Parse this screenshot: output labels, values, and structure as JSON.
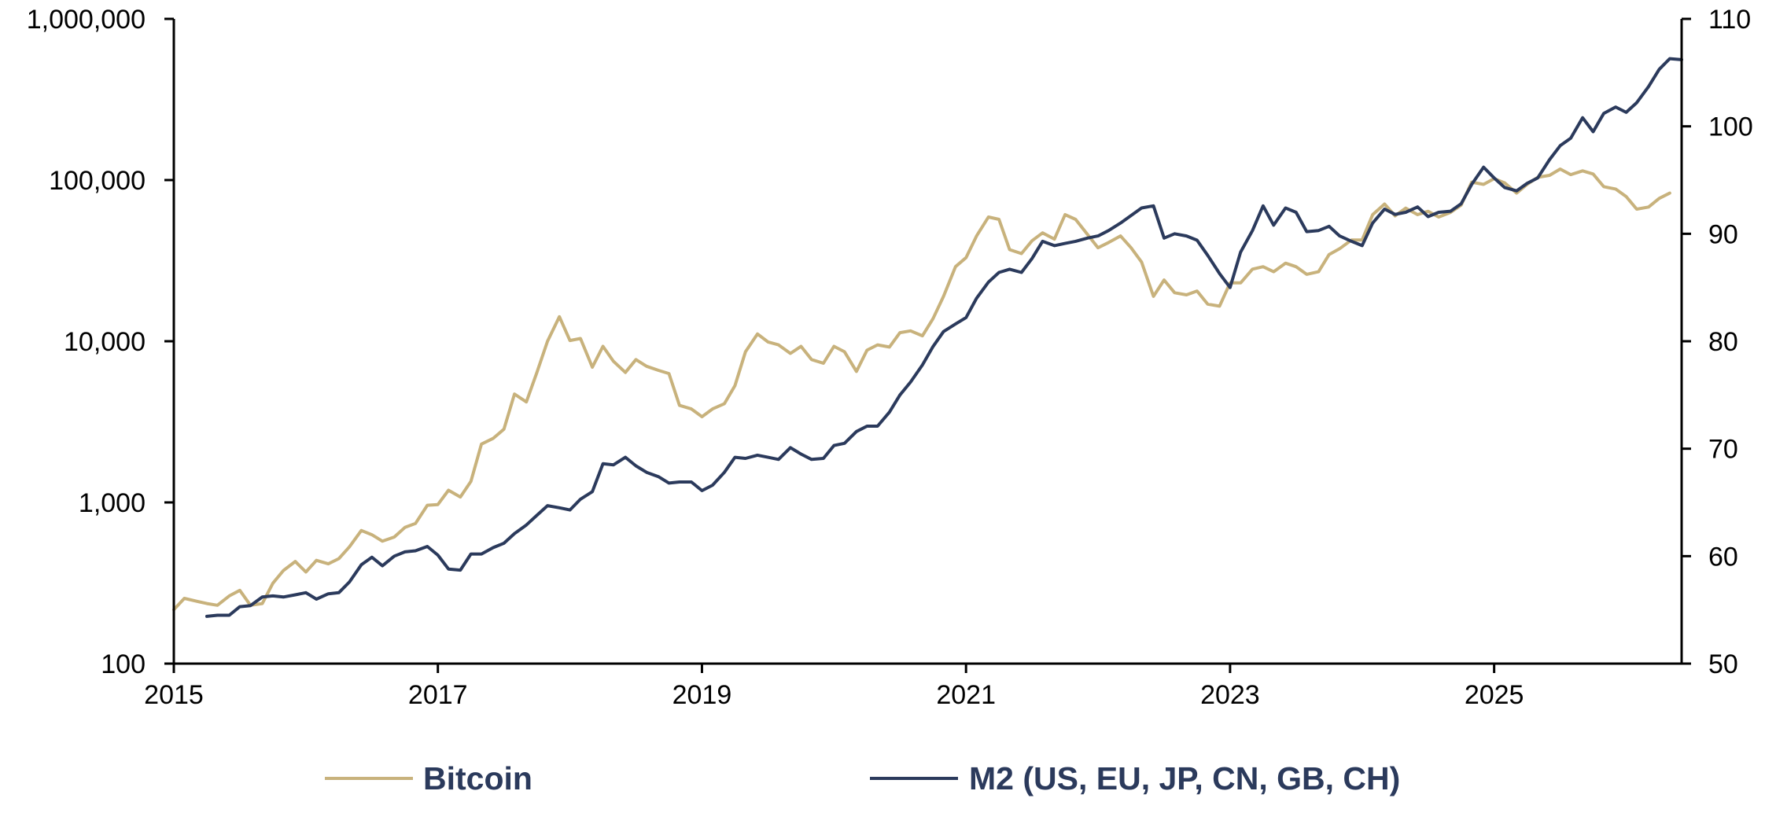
{
  "chart_data": {
    "type": "line",
    "title": "",
    "xlabel": "",
    "ylabel": "",
    "x_ticks": [
      "2015",
      "2017",
      "2019",
      "2021",
      "2023",
      "2025"
    ],
    "x_range": [
      2015.0,
      2026.42
    ],
    "y_left": {
      "scale": "log",
      "range": [
        100,
        1000000
      ],
      "ticks": [
        "100",
        "1,000",
        "10,000",
        "100,000",
        "1,000,000"
      ]
    },
    "y_right": {
      "scale": "linear",
      "range": [
        50,
        110
      ],
      "ticks": [
        "50",
        "60",
        "70",
        "80",
        "90",
        "100",
        "110"
      ]
    },
    "grid": false,
    "legend_position": "bottom",
    "series": [
      {
        "name": "Bitcoin",
        "axis": "left",
        "color": "#c8b27c",
        "x": [
          2015.0,
          2015.08,
          2015.17,
          2015.25,
          2015.33,
          2015.42,
          2015.5,
          2015.58,
          2015.67,
          2015.75,
          2015.83,
          2015.92,
          2016.0,
          2016.08,
          2016.17,
          2016.25,
          2016.33,
          2016.42,
          2016.5,
          2016.58,
          2016.67,
          2016.75,
          2016.83,
          2016.92,
          2017.0,
          2017.08,
          2017.17,
          2017.25,
          2017.33,
          2017.42,
          2017.5,
          2017.58,
          2017.67,
          2017.75,
          2017.83,
          2017.92,
          2018.0,
          2018.08,
          2018.17,
          2018.25,
          2018.33,
          2018.42,
          2018.5,
          2018.58,
          2018.67,
          2018.75,
          2018.83,
          2018.92,
          2019.0,
          2019.08,
          2019.17,
          2019.25,
          2019.33,
          2019.42,
          2019.5,
          2019.58,
          2019.67,
          2019.75,
          2019.83,
          2019.92,
          2020.0,
          2020.08,
          2020.17,
          2020.25,
          2020.33,
          2020.42,
          2020.5,
          2020.58,
          2020.67,
          2020.75,
          2020.83,
          2020.92,
          2021.0,
          2021.08,
          2021.17,
          2021.25,
          2021.33,
          2021.42,
          2021.5,
          2021.58,
          2021.67,
          2021.75,
          2021.83,
          2021.92,
          2022.0,
          2022.08,
          2022.17,
          2022.25,
          2022.33,
          2022.42,
          2022.5,
          2022.58,
          2022.67,
          2022.75,
          2022.83,
          2022.92,
          2023.0,
          2023.08,
          2023.17,
          2023.25,
          2023.33,
          2023.42,
          2023.5,
          2023.58,
          2023.67,
          2023.75,
          2023.83,
          2023.92,
          2024.0,
          2024.08,
          2024.17,
          2024.25,
          2024.33,
          2024.42,
          2024.5,
          2024.58,
          2024.67,
          2024.75,
          2024.83,
          2024.92,
          2025.0,
          2025.08,
          2025.17,
          2025.25,
          2025.33,
          2025.42,
          2025.5,
          2025.58,
          2025.67,
          2025.75,
          2025.83,
          2025.92,
          2026.0,
          2026.08,
          2026.17,
          2026.25,
          2026.33
        ],
        "values": [
          216,
          254,
          244,
          236,
          230,
          263,
          285,
          230,
          236,
          315,
          378,
          430,
          370,
          437,
          416,
          448,
          531,
          670,
          630,
          575,
          610,
          700,
          740,
          960,
          970,
          1190,
          1080,
          1350,
          2300,
          2500,
          2850,
          4700,
          4200,
          6400,
          10000,
          14200,
          10100,
          10400,
          6900,
          9300,
          7500,
          6400,
          7700,
          7000,
          6600,
          6300,
          4000,
          3800,
          3400,
          3800,
          4100,
          5300,
          8600,
          11100,
          9900,
          9500,
          8400,
          9300,
          7700,
          7300,
          9300,
          8600,
          6500,
          8800,
          9500,
          9200,
          11300,
          11600,
          10800,
          13800,
          19000,
          29000,
          33000,
          45000,
          59000,
          57000,
          37000,
          35000,
          42000,
          47000,
          43000,
          61000,
          57000,
          46000,
          38000,
          41000,
          45000,
          38000,
          31000,
          19000,
          24000,
          20000,
          19400,
          20500,
          17000,
          16500,
          23000,
          23000,
          28000,
          29000,
          27000,
          30500,
          29000,
          26000,
          27000,
          34500,
          37500,
          42500,
          42500,
          61000,
          71000,
          60000,
          67000,
          61000,
          64000,
          59000,
          63000,
          70000,
          97000,
          94000,
          102000,
          96000,
          83000,
          94000,
          104000,
          107000,
          117000,
          108000,
          114000,
          109000,
          91000,
          88000,
          79000,
          66000,
          68000,
          77000,
          83000
        ]
      },
      {
        "name": "M2 (US, EU, JP, CN, GB, CH)",
        "axis": "right",
        "color": "#2b3a5c",
        "x": [
          2015.25,
          2015.33,
          2015.42,
          2015.5,
          2015.58,
          2015.67,
          2015.75,
          2015.83,
          2015.92,
          2016.0,
          2016.08,
          2016.17,
          2016.25,
          2016.33,
          2016.42,
          2016.5,
          2016.58,
          2016.67,
          2016.75,
          2016.83,
          2016.92,
          2017.0,
          2017.08,
          2017.17,
          2017.25,
          2017.33,
          2017.42,
          2017.5,
          2017.58,
          2017.67,
          2017.75,
          2017.83,
          2017.92,
          2018.0,
          2018.08,
          2018.17,
          2018.25,
          2018.33,
          2018.42,
          2018.5,
          2018.58,
          2018.67,
          2018.75,
          2018.83,
          2018.92,
          2019.0,
          2019.08,
          2019.17,
          2019.25,
          2019.33,
          2019.42,
          2019.5,
          2019.58,
          2019.67,
          2019.75,
          2019.83,
          2019.92,
          2020.0,
          2020.08,
          2020.17,
          2020.25,
          2020.33,
          2020.42,
          2020.5,
          2020.58,
          2020.67,
          2020.75,
          2020.83,
          2020.92,
          2021.0,
          2021.08,
          2021.17,
          2021.25,
          2021.33,
          2021.42,
          2021.5,
          2021.58,
          2021.67,
          2021.75,
          2021.83,
          2021.92,
          2022.0,
          2022.08,
          2022.17,
          2022.25,
          2022.33,
          2022.42,
          2022.5,
          2022.58,
          2022.67,
          2022.75,
          2022.83,
          2022.92,
          2023.0,
          2023.08,
          2023.17,
          2023.25,
          2023.33,
          2023.42,
          2023.5,
          2023.58,
          2023.67,
          2023.75,
          2023.83,
          2023.92,
          2024.0,
          2024.08,
          2024.17,
          2024.25,
          2024.33,
          2024.42,
          2024.5,
          2024.58,
          2024.67,
          2024.75,
          2024.83,
          2024.92,
          2025.0,
          2025.08,
          2025.17,
          2025.25,
          2025.33,
          2025.42,
          2025.5,
          2025.58,
          2025.67,
          2025.75,
          2025.83,
          2025.92,
          2026.0,
          2026.08,
          2026.17,
          2026.25,
          2026.33,
          2026.42
        ],
        "values": [
          54.4,
          54.5,
          54.5,
          55.3,
          55.4,
          56.2,
          56.3,
          56.2,
          56.4,
          56.6,
          56.0,
          56.5,
          56.6,
          57.6,
          59.2,
          59.9,
          59.1,
          60.0,
          60.4,
          60.5,
          60.9,
          60.1,
          58.8,
          58.7,
          60.2,
          60.2,
          60.8,
          61.2,
          62.1,
          62.9,
          63.8,
          64.7,
          64.5,
          64.3,
          65.3,
          66.0,
          68.6,
          68.5,
          69.2,
          68.4,
          67.8,
          67.4,
          66.8,
          66.9,
          66.9,
          66.1,
          66.6,
          67.8,
          69.2,
          69.1,
          69.4,
          69.2,
          69.0,
          70.1,
          69.5,
          69.0,
          69.1,
          70.3,
          70.5,
          71.6,
          72.1,
          72.1,
          73.4,
          75.0,
          76.2,
          77.8,
          79.5,
          80.9,
          81.6,
          82.2,
          84.0,
          85.5,
          86.4,
          86.7,
          86.4,
          87.7,
          89.3,
          88.9,
          89.1,
          89.3,
          89.6,
          89.8,
          90.3,
          91.0,
          91.7,
          92.4,
          92.6,
          89.6,
          90.0,
          89.8,
          89.4,
          88.0,
          86.3,
          85.0,
          88.3,
          90.3,
          92.6,
          90.8,
          92.4,
          92.0,
          90.2,
          90.3,
          90.7,
          89.8,
          89.3,
          88.9,
          91.0,
          92.3,
          91.8,
          92.0,
          92.5,
          91.6,
          92.0,
          92.1,
          92.8,
          94.6,
          96.2,
          95.2,
          94.3,
          94.0,
          94.7,
          95.2,
          96.9,
          98.2,
          98.9,
          100.8,
          99.5,
          101.2,
          101.8,
          101.3,
          102.2,
          103.7,
          105.3,
          106.3,
          106.2
        ]
      }
    ]
  }
}
